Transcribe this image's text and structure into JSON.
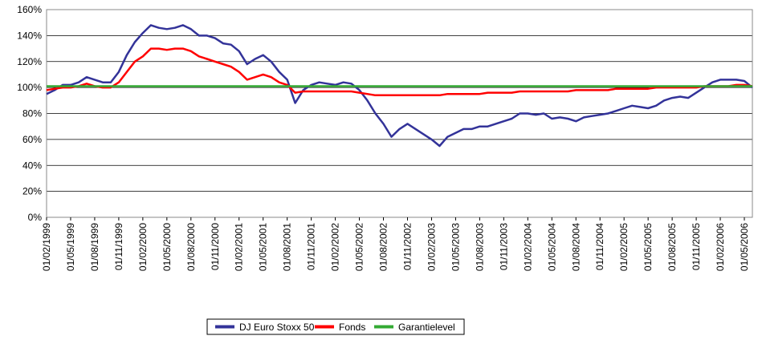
{
  "chart_data": {
    "type": "line",
    "categories": [
      "01/02/1999",
      null,
      null,
      "01/05/1999",
      null,
      null,
      "01/08/1999",
      null,
      null,
      "01/11/1999",
      null,
      null,
      "01/02/2000",
      null,
      null,
      "01/05/2000",
      null,
      null,
      "01/08/2000",
      null,
      null,
      "01/11/2000",
      null,
      null,
      "01/02/2001",
      null,
      null,
      "01/05/2001",
      null,
      null,
      "01/08/2001",
      null,
      null,
      "01/11/2001",
      null,
      null,
      "01/02/2002",
      null,
      null,
      "01/05/2002",
      null,
      null,
      "01/08/2002",
      null,
      null,
      "01/11/2002",
      null,
      null,
      "01/02/2003",
      null,
      null,
      "01/05/2003",
      null,
      null,
      "01/08/2003",
      null,
      null,
      "01/11/2003",
      null,
      null,
      "01/02/2004",
      null,
      null,
      "01/05/2004",
      null,
      null,
      "01/08/2004",
      null,
      null,
      "01/11/2004",
      null,
      null,
      "01/02/2005",
      null,
      null,
      "01/05/2005",
      null,
      null,
      "01/08/2005",
      null,
      null,
      "01/11/2005",
      null,
      null,
      "01/02/2006",
      null,
      null,
      "01/05/2006",
      null
    ],
    "series": [
      {
        "name": "DJ Euro Stoxx 50",
        "color": "#333399",
        "values": [
          95,
          98,
          102,
          102,
          104,
          108,
          106,
          104,
          104,
          112,
          125,
          135,
          142,
          148,
          146,
          145,
          146,
          148,
          145,
          140,
          140,
          138,
          134,
          133,
          128,
          118,
          122,
          125,
          120,
          112,
          106,
          88,
          98,
          102,
          104,
          103,
          102,
          104,
          103,
          98,
          90,
          80,
          72,
          62,
          68,
          72,
          68,
          64,
          60,
          55,
          62,
          65,
          68,
          68,
          70,
          70,
          72,
          74,
          76,
          80,
          80,
          79,
          80,
          76,
          77,
          76,
          74,
          77,
          78,
          79,
          80,
          82,
          84,
          86,
          85,
          84,
          86,
          90,
          92,
          93,
          92,
          96,
          100,
          104,
          106,
          106,
          106,
          105,
          100
        ]
      },
      {
        "name": "Fonds",
        "color": "#ff0000",
        "values": [
          98,
          99,
          100,
          100,
          101,
          103,
          101,
          100,
          100,
          104,
          112,
          120,
          124,
          130,
          130,
          129,
          130,
          130,
          128,
          124,
          122,
          120,
          118,
          116,
          112,
          106,
          108,
          110,
          108,
          104,
          102,
          96,
          97,
          97,
          97,
          97,
          97,
          97,
          97,
          96,
          95,
          94,
          94,
          94,
          94,
          94,
          94,
          94,
          94,
          94,
          95,
          95,
          95,
          95,
          95,
          96,
          96,
          96,
          96,
          97,
          97,
          97,
          97,
          97,
          97,
          97,
          98,
          98,
          98,
          98,
          98,
          99,
          99,
          99,
          99,
          99,
          100,
          100,
          100,
          100,
          100,
          100,
          101,
          101,
          101,
          101,
          102,
          102,
          101
        ]
      },
      {
        "name": "Garantielevel",
        "color": "#33aa33",
        "values": [
          101,
          101,
          101,
          101,
          101,
          101,
          101,
          101,
          101,
          101,
          101,
          101,
          101,
          101,
          101,
          101,
          101,
          101,
          101,
          101,
          101,
          101,
          101,
          101,
          101,
          101,
          101,
          101,
          101,
          101,
          101,
          101,
          101,
          101,
          101,
          101,
          101,
          101,
          101,
          101,
          101,
          101,
          101,
          101,
          101,
          101,
          101,
          101,
          101,
          101,
          101,
          101,
          101,
          101,
          101,
          101,
          101,
          101,
          101,
          101,
          101,
          101,
          101,
          101,
          101,
          101,
          101,
          101,
          101,
          101,
          101,
          101,
          101,
          101,
          101,
          101,
          101,
          101,
          101,
          101,
          101,
          101,
          101,
          101,
          101,
          101,
          101,
          101,
          101
        ]
      }
    ],
    "ylim": [
      0,
      160
    ],
    "yticks": [
      {
        "value": 0,
        "label": "0%"
      },
      {
        "value": 20,
        "label": "20%"
      },
      {
        "value": 40,
        "label": "40%"
      },
      {
        "value": 60,
        "label": "60%"
      },
      {
        "value": 80,
        "label": "80%"
      },
      {
        "value": 100,
        "label": "100%"
      },
      {
        "value": 120,
        "label": "120%"
      },
      {
        "value": 140,
        "label": "140%"
      },
      {
        "value": 160,
        "label": "160%"
      }
    ],
    "grid": true,
    "legend": "bottom"
  }
}
